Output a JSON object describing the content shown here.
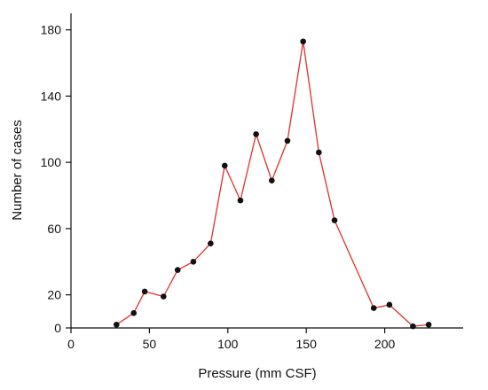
{
  "chart_data": {
    "type": "line",
    "xlabel": "Pressure (mm CSF)",
    "ylabel": "Number of cases",
    "xlim": [
      0,
      250
    ],
    "ylim": [
      0,
      190
    ],
    "x_ticks": [
      0,
      50,
      100,
      150,
      200
    ],
    "y_ticks": [
      0,
      20,
      60,
      100,
      140,
      180
    ],
    "grid": false,
    "legend": "none",
    "colors": {
      "line": "#e0302b",
      "marker": "#111111",
      "axis": "#111111"
    },
    "series": [
      {
        "x": [
          29,
          40,
          47,
          59,
          68,
          78,
          89,
          98,
          108,
          118,
          128,
          138,
          148,
          158,
          168,
          193,
          203,
          218,
          228
        ],
        "y": [
          2,
          9,
          22,
          19,
          35,
          40,
          51,
          98,
          77,
          117,
          89,
          113,
          173,
          106,
          65,
          12,
          14,
          1,
          2
        ]
      }
    ]
  }
}
